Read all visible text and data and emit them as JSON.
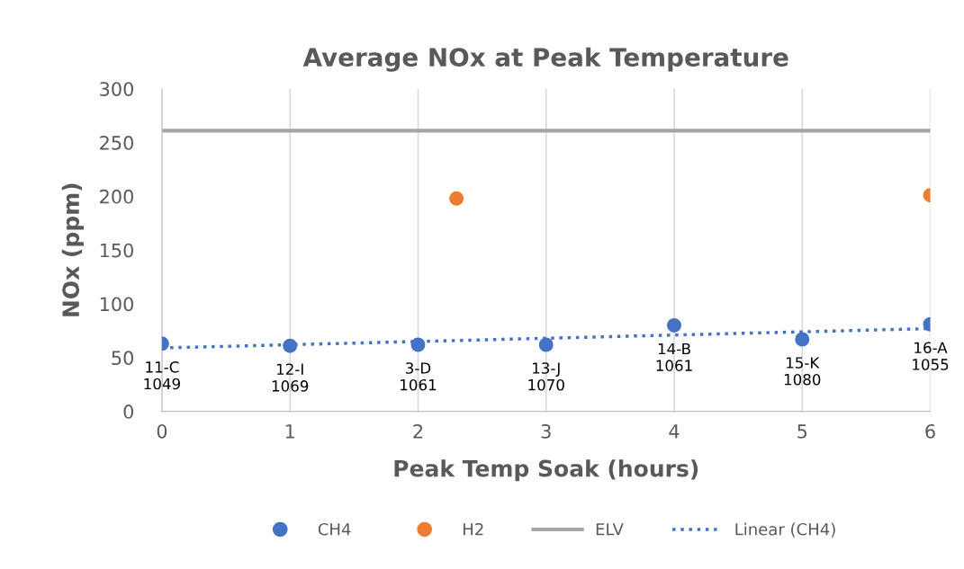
{
  "chart_data": {
    "type": "scatter",
    "title": "Average NOx at Peak Temperature",
    "xlabel": "Peak Temp Soak (hours)",
    "ylabel": "NOx (ppm)",
    "xlim": [
      0,
      6
    ],
    "xticks": [
      0,
      1,
      2,
      3,
      4,
      5,
      6
    ],
    "ylim": [
      0,
      300
    ],
    "yticks": [
      0,
      50,
      100,
      150,
      200,
      250,
      300
    ],
    "grid": "x",
    "legend": "bottom",
    "marker": "circle",
    "series": [
      {
        "name": "CH4",
        "color": "#4472c4",
        "x": [
          0,
          1,
          2,
          3,
          4,
          5,
          6
        ],
        "values": [
          63,
          61,
          62,
          62,
          80,
          67,
          81
        ]
      },
      {
        "name": "H2",
        "color": "#ed7d31",
        "x": [
          2.3,
          6
        ],
        "values": [
          198,
          201
        ]
      },
      {
        "name": "ELV",
        "type": "line",
        "color": "#a5a5a5",
        "line_style": "solid",
        "marker": "none",
        "x": [
          0,
          6
        ],
        "values": [
          261,
          261
        ]
      },
      {
        "name": "Linear (CH4)",
        "type": "line",
        "color": "#4472c4",
        "line_style": "dotted",
        "marker": "none",
        "x": [
          0,
          6
        ],
        "values": [
          59,
          77
        ]
      }
    ],
    "annotations": [
      {
        "text": "11-C\n1049",
        "x": 0,
        "y": 63
      },
      {
        "text": "12-I\n1069",
        "x": 1,
        "y": 61
      },
      {
        "text": "3-D\n1061",
        "x": 2,
        "y": 62
      },
      {
        "text": "13-J\n1070",
        "x": 3,
        "y": 62
      },
      {
        "text": "14-B\n1061",
        "x": 4,
        "y": 80
      },
      {
        "text": "15-K\n1080",
        "x": 5,
        "y": 67
      },
      {
        "text": "16-A\n1055",
        "x": 6,
        "y": 81
      }
    ]
  }
}
